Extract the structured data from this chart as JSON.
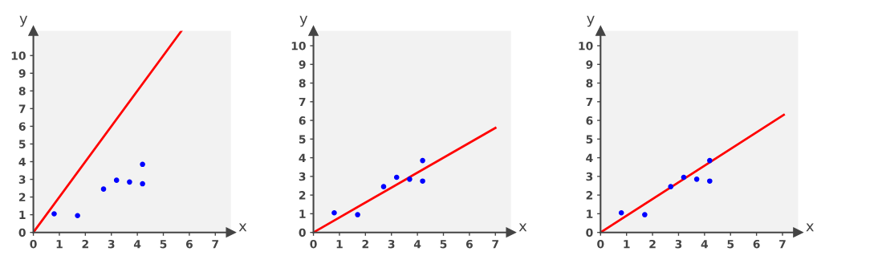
{
  "chart_data": [
    {
      "type": "scatter",
      "xlabel": "x",
      "ylabel": "y",
      "xlim": [
        0,
        7.6
      ],
      "ylim": [
        0,
        11.4
      ],
      "xticks": [
        0,
        1,
        2,
        3,
        4,
        5,
        6,
        7
      ],
      "yticks": [
        0,
        1,
        2,
        3,
        4,
        5,
        6,
        7,
        8,
        9,
        10
      ],
      "grid": false,
      "series": [
        {
          "marker": "circle",
          "color": "#0000ff",
          "x": [
            0.8,
            1.7,
            2.7,
            3.2,
            3.7,
            4.2,
            4.2
          ],
          "values": [
            1.05,
            0.95,
            2.45,
            2.95,
            2.85,
            3.85,
            2.75
          ]
        },
        {
          "type": "line",
          "color": "#ff0000",
          "x": [
            0,
            5.7
          ],
          "values": [
            0,
            11.4
          ]
        }
      ]
    },
    {
      "type": "scatter",
      "xlabel": "x",
      "ylabel": "y",
      "xlim": [
        0,
        7.6
      ],
      "ylim": [
        0,
        10.8
      ],
      "xticks": [
        0,
        1,
        2,
        3,
        4,
        5,
        6,
        7
      ],
      "yticks": [
        0,
        1,
        2,
        3,
        4,
        5,
        6,
        7,
        8,
        9,
        10
      ],
      "grid": false,
      "series": [
        {
          "marker": "circle",
          "color": "#0000ff",
          "x": [
            0.8,
            1.7,
            2.7,
            3.2,
            3.7,
            4.2,
            4.2
          ],
          "values": [
            1.05,
            0.95,
            2.45,
            2.95,
            2.85,
            3.85,
            2.75
          ]
        },
        {
          "type": "line",
          "color": "#ff0000",
          "x": [
            0,
            7.0
          ],
          "values": [
            0,
            5.6
          ]
        }
      ]
    },
    {
      "type": "scatter",
      "xlabel": "x",
      "ylabel": "y",
      "xlim": [
        0,
        7.6
      ],
      "ylim": [
        0,
        10.8
      ],
      "xticks": [
        0,
        1,
        2,
        3,
        4,
        5,
        6,
        7
      ],
      "yticks": [
        0,
        1,
        2,
        3,
        4,
        5,
        6,
        7,
        8,
        9,
        10
      ],
      "grid": false,
      "series": [
        {
          "marker": "circle",
          "color": "#0000ff",
          "x": [
            0.8,
            1.7,
            2.7,
            3.2,
            3.7,
            4.2,
            4.2
          ],
          "values": [
            1.05,
            0.95,
            2.45,
            2.95,
            2.85,
            3.85,
            2.75
          ]
        },
        {
          "type": "line",
          "color": "#ff0000",
          "x": [
            0,
            7.05
          ],
          "values": [
            0,
            6.3
          ]
        }
      ]
    }
  ]
}
